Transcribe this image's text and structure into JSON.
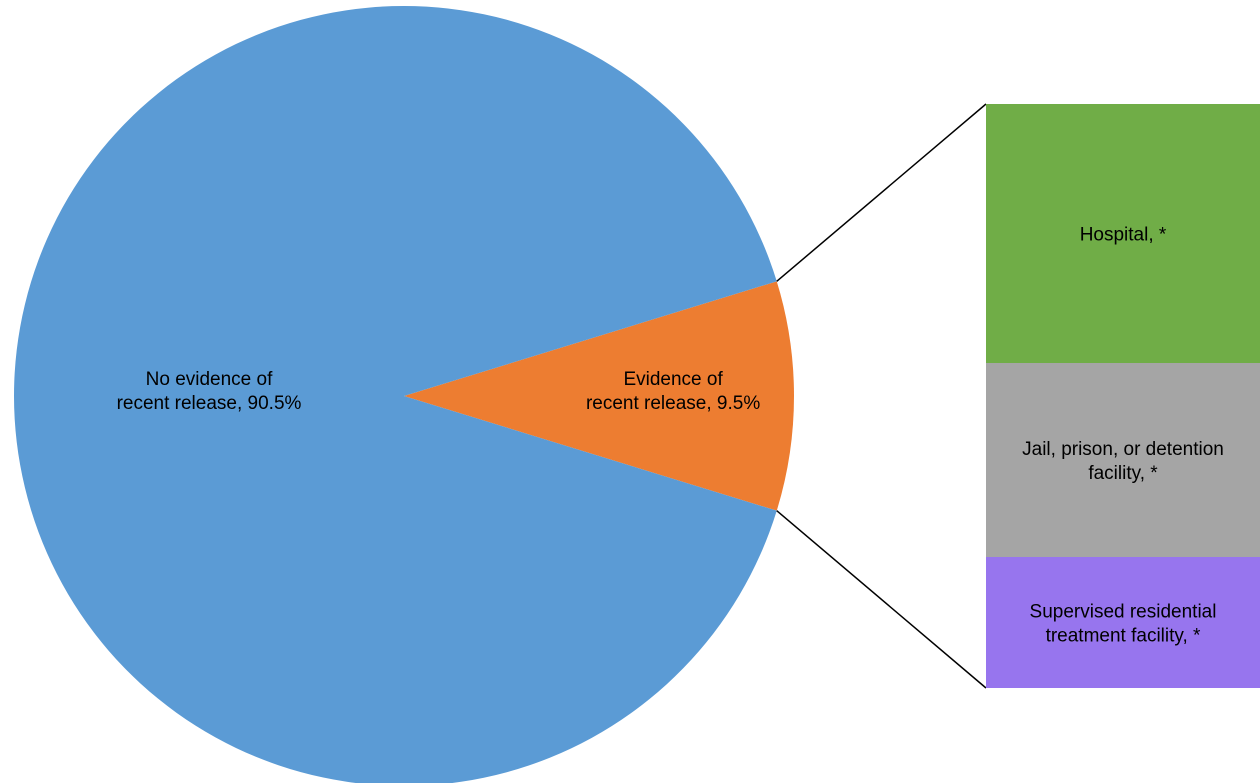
{
  "chart_data": {
    "type": "pie",
    "title": "",
    "slices": [
      {
        "label_lines": [
          "No evidence of",
          "recent release, 90.5%"
        ],
        "value": 90.5,
        "color": "#5b9bd5"
      },
      {
        "label_lines": [
          "Evidence of",
          "recent release, 9.5%"
        ],
        "value": 9.5,
        "color": "#ed7d31"
      }
    ],
    "breakdown": {
      "of_slice": "Evidence of recent release",
      "segments": [
        {
          "label_lines": [
            "Hospital, *"
          ],
          "value": null,
          "color": "#70ad47"
        },
        {
          "label_lines": [
            "Jail, prison, or detention",
            "facility, *"
          ],
          "value": null,
          "color": "#a5a5a5"
        },
        {
          "label_lines": [
            "Supervised residential",
            "treatment facility, *"
          ],
          "value": null,
          "color": "#9775ee"
        }
      ]
    }
  }
}
